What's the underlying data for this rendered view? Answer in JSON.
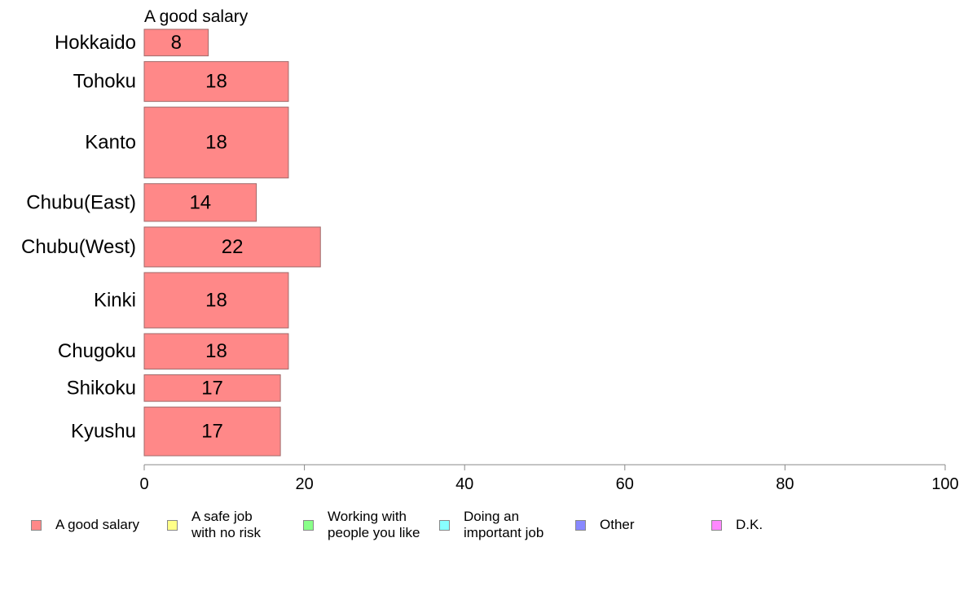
{
  "chart_data": {
    "type": "bar",
    "orientation": "horizontal",
    "title": "A good salary",
    "categories": [
      "Hokkaido",
      "Tohoku",
      "Kanto",
      "Chubu(East)",
      "Chubu(West)",
      "Kinki",
      "Chugoku",
      "Shikoku",
      "Kyushu"
    ],
    "values": [
      8,
      18,
      18,
      14,
      22,
      18,
      18,
      17,
      17
    ],
    "value_labels": [
      "8",
      "18",
      "18",
      "14",
      "22",
      "18",
      "18",
      "17",
      "17"
    ],
    "category_weights": [
      0.6,
      0.9,
      1.6,
      0.85,
      0.9,
      1.25,
      0.8,
      0.6,
      1.1
    ],
    "xlim": [
      0,
      100
    ],
    "xticks": [
      0,
      20,
      40,
      60,
      80,
      100
    ],
    "xtick_labels": [
      "0",
      "20",
      "40",
      "60",
      "80",
      "100"
    ],
    "bar_color": "#ff8888",
    "bar_edge_color": "#a06a6a",
    "grid": false,
    "legend_position": "bottom",
    "legend": [
      {
        "label": "A good salary",
        "color": "#ff8888"
      },
      {
        "label": "A safe job\nwith no risk",
        "color": "#ffff88"
      },
      {
        "label": "Working with\npeople you like",
        "color": "#88ff88"
      },
      {
        "label": "Doing an\nimportant job",
        "color": "#88ffff"
      },
      {
        "label": "Other",
        "color": "#8888ff"
      },
      {
        "label": "D.K.",
        "color": "#ff88ff"
      }
    ]
  }
}
